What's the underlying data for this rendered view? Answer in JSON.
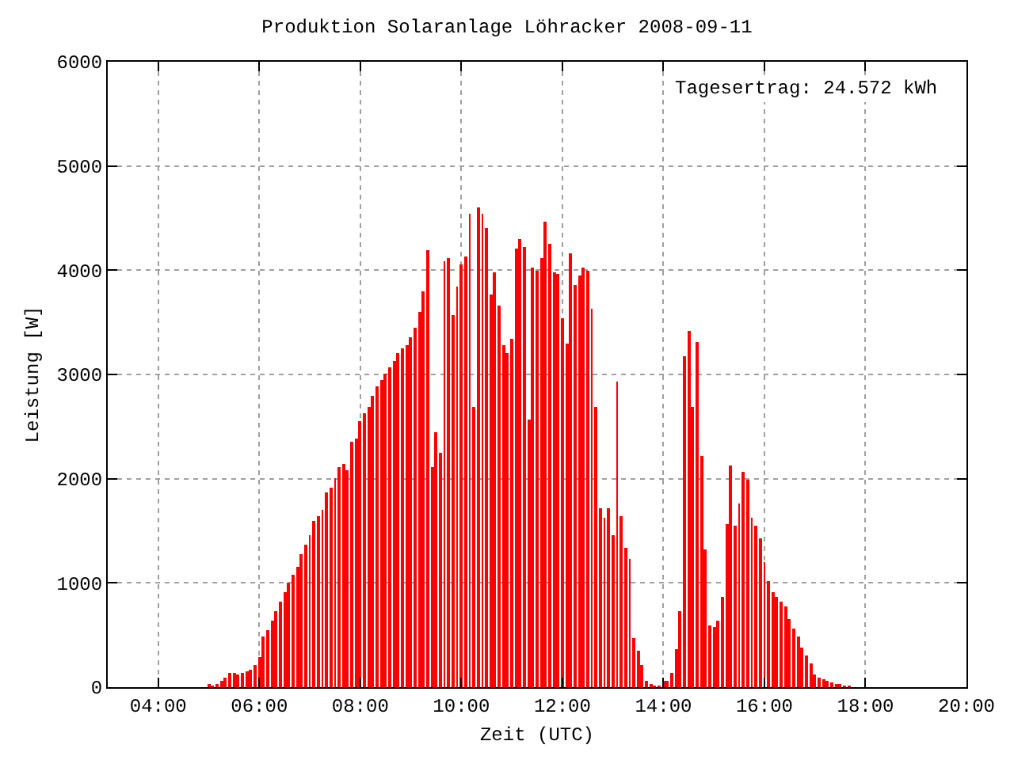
{
  "chart_data": {
    "type": "bar",
    "title": "Produktion Solaranlage Löhracker 2008-09-11",
    "xlabel": "Zeit (UTC)",
    "ylabel": "Leistung [W]",
    "annotations": [
      "Tagesertrag: 24.572 kWh"
    ],
    "x": [
      5,
      5.0833,
      5.1667,
      5.25,
      5.3333,
      5.4167,
      5.5,
      5.5833,
      5.6667,
      5.75,
      5.8333,
      5.9167,
      6,
      6.0833,
      6.1667,
      6.25,
      6.3333,
      6.4167,
      6.5,
      6.5833,
      6.6667,
      6.75,
      6.8333,
      6.9167,
      7,
      7.0833,
      7.1667,
      7.25,
      7.3333,
      7.4167,
      7.5,
      7.5833,
      7.6667,
      7.75,
      7.8333,
      7.9167,
      8,
      8.0833,
      8.1667,
      8.25,
      8.3333,
      8.4167,
      8.5,
      8.5833,
      8.6667,
      8.75,
      8.8333,
      8.9167,
      9,
      9.0833,
      9.1667,
      9.25,
      9.3333,
      9.4167,
      9.5,
      9.5833,
      9.6667,
      9.75,
      9.8333,
      9.9167,
      10,
      10.0833,
      10.1667,
      10.25,
      10.3333,
      10.4167,
      10.5,
      10.5833,
      10.6667,
      10.75,
      10.8333,
      10.9167,
      11,
      11.0833,
      11.1667,
      11.25,
      11.3333,
      11.4167,
      11.5,
      11.5833,
      11.6667,
      11.75,
      11.8333,
      11.9167,
      12,
      12.0833,
      12.1667,
      12.25,
      12.3333,
      12.4167,
      12.5,
      12.5833,
      12.6667,
      12.75,
      12.8333,
      12.9167,
      13,
      13.0833,
      13.1667,
      13.25,
      13.3333,
      13.4167,
      13.5,
      13.5833,
      13.6667,
      13.75,
      13.8333,
      13.9167,
      14,
      14.0833,
      14.1667,
      14.25,
      14.3333,
      14.4167,
      14.5,
      14.5833,
      14.6667,
      14.75,
      14.8333,
      14.9167,
      15,
      15.0833,
      15.1667,
      15.25,
      15.3333,
      15.4167,
      15.5,
      15.5833,
      15.6667,
      15.75,
      15.8333,
      15.9167,
      16,
      16.0833,
      16.1667,
      16.25,
      16.3333,
      16.4167,
      16.5,
      16.5833,
      16.6667,
      16.75,
      16.8333,
      16.9167,
      17,
      17.0833,
      17.1667,
      17.25,
      17.3333,
      17.4167,
      17.5,
      17.5833,
      17.6667
    ],
    "series": [
      {
        "color": "#ff0000",
        "values": [
          25,
          15,
          30,
          60,
          90,
          135,
          135,
          120,
          135,
          150,
          165,
          210,
          285,
          490,
          550,
          640,
          730,
          820,
          910,
          1000,
          1075,
          1150,
          1270,
          1360,
          1460,
          1600,
          1640,
          1700,
          1865,
          1910,
          2000,
          2105,
          2135,
          2075,
          2360,
          2390,
          2550,
          2625,
          2685,
          2790,
          2880,
          2940,
          3010,
          3075,
          3135,
          3210,
          3255,
          3285,
          3360,
          3450,
          3600,
          3805,
          4195,
          2105,
          2450,
          2255,
          4090,
          4120,
          3565,
          3850,
          4060,
          4135,
          4535,
          2685,
          4610,
          4535,
          4400,
          3760,
          3985,
          3655,
          3285,
          3210,
          3345,
          4210,
          4300,
          4225,
          2565,
          4030,
          4000,
          4120,
          4465,
          4255,
          3985,
          3970,
          3535,
          3300,
          4165,
          3865,
          3955,
          4030,
          4000,
          3625,
          2685,
          1715,
          1625,
          1715,
          1465,
          2925,
          1640,
          1330,
          1225,
          465,
          345,
          210,
          60,
          30,
          15,
          15,
          60,
          60,
          135,
          360,
          730,
          3180,
          3420,
          2685,
          3315,
          2225,
          1315,
          600,
          570,
          645,
          865,
          1570,
          2120,
          1550,
          1765,
          2060,
          1985,
          1625,
          1550,
          1430,
          1195,
          1015,
          910,
          865,
          820,
          775,
          655,
          565,
          480,
          375,
          300,
          225,
          120,
          90,
          75,
          60,
          45,
          30,
          30,
          15,
          15
        ]
      }
    ],
    "xlim": [
      3,
      20
    ],
    "xticks": [
      {
        "value": 4,
        "label": "04:00"
      },
      {
        "value": 6,
        "label": "06:00"
      },
      {
        "value": 8,
        "label": "08:00"
      },
      {
        "value": 10,
        "label": "10:00"
      },
      {
        "value": 12,
        "label": "12:00"
      },
      {
        "value": 14,
        "label": "14:00"
      },
      {
        "value": 16,
        "label": "16:00"
      },
      {
        "value": 18,
        "label": "18:00"
      },
      {
        "value": 20,
        "label": "20:00"
      }
    ],
    "ylim": [
      0,
      6000
    ],
    "yticks": [
      0,
      1000,
      2000,
      3000,
      4000,
      5000,
      6000
    ],
    "grid": true
  }
}
